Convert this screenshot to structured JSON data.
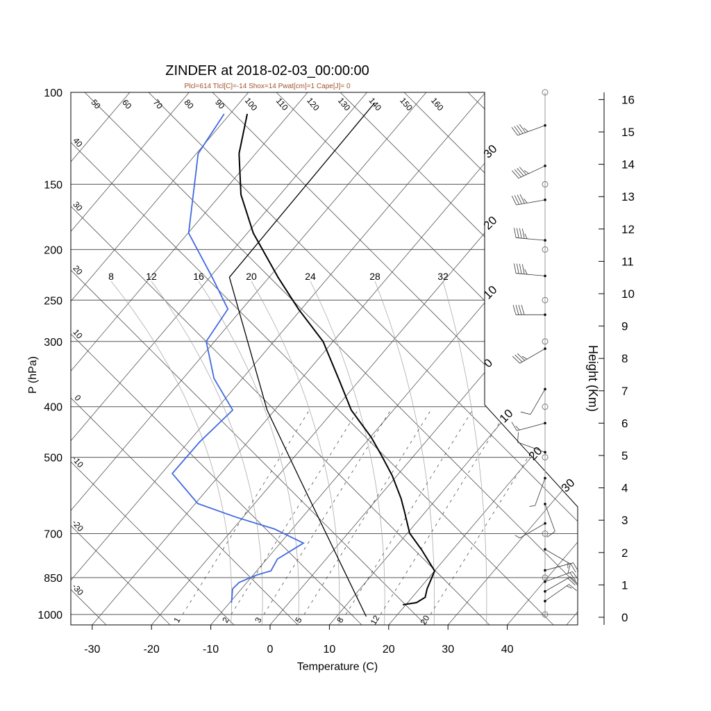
{
  "title": "ZINDER at 2018-02-03_00:00:00",
  "subtitle": "Plcl=614 Tlcl[C]=-14 Shox=14 Pwat[cm]=1 Cape[J]= 0",
  "colors": {
    "temperature": "#000000",
    "dewpoint": "#4169e1",
    "subtitle": "#a0522d",
    "grid": "#555555",
    "moist": "#aaaaaa"
  },
  "chart_data": {
    "type": "line",
    "title": "ZINDER at 2018-02-03_00:00:00",
    "xlabel": "Temperature (C)",
    "ylabel": "P (hPa)",
    "y2label": "Height (Km)",
    "pressure_levels": [
      100,
      150,
      200,
      250,
      300,
      400,
      500,
      700,
      850,
      1000
    ],
    "temperature_ticks": [
      -30,
      -20,
      -10,
      0,
      10,
      20,
      30,
      40
    ],
    "height_ticks": [
      0,
      1,
      2,
      3,
      4,
      5,
      6,
      7,
      8,
      9,
      10,
      11,
      12,
      13,
      14,
      15,
      16
    ],
    "isotherm_labels_upper": [
      "30",
      "20",
      "10",
      "0"
    ],
    "isotherm_labels_lower": [
      "10",
      "20",
      "30"
    ],
    "adiabat_labels_top": [
      "50",
      "60",
      "70",
      "80",
      "90",
      "100",
      "110",
      "120",
      "130",
      "140",
      "150",
      "160"
    ],
    "adiabat_labels_left": [
      "40",
      "30",
      "20",
      "10",
      "0",
      "-10",
      "-20",
      "-30"
    ],
    "moist_adiabat_labels": [
      "8",
      "12",
      "16",
      "20",
      "24",
      "28",
      "32"
    ],
    "mixing_ratio_labels": [
      "1",
      "2",
      "3",
      "5",
      "8",
      "12",
      "20"
    ],
    "temperature": [
      {
        "p": 958,
        "t": 19.5
      },
      {
        "p": 949,
        "t": 21.5
      },
      {
        "p": 927,
        "t": 22.2
      },
      {
        "p": 893,
        "t": 21.3
      },
      {
        "p": 825,
        "t": 20.0
      },
      {
        "p": 752,
        "t": 14.8
      },
      {
        "p": 699,
        "t": 10.4
      },
      {
        "p": 638,
        "t": 6.6
      },
      {
        "p": 600,
        "t": 4.0
      },
      {
        "p": 542,
        "t": -0.8
      },
      {
        "p": 494,
        "t": -5.7
      },
      {
        "p": 458,
        "t": -9.8
      },
      {
        "p": 406,
        "t": -17.1
      },
      {
        "p": 359,
        "t": -23.0
      },
      {
        "p": 300,
        "t": -31.7
      },
      {
        "p": 260,
        "t": -40.5
      },
      {
        "p": 226,
        "t": -48.5
      },
      {
        "p": 186,
        "t": -59.0
      },
      {
        "p": 157,
        "t": -66.6
      },
      {
        "p": 131,
        "t": -72.8
      },
      {
        "p": 110,
        "t": -77.1
      }
    ],
    "dewpoint": [
      {
        "p": 949,
        "t": -9.7
      },
      {
        "p": 893,
        "t": -11.5
      },
      {
        "p": 868,
        "t": -11.3
      },
      {
        "p": 840,
        "t": -9.4
      },
      {
        "p": 825,
        "t": -7.6
      },
      {
        "p": 783,
        "t": -8.2
      },
      {
        "p": 730,
        "t": -6.1
      },
      {
        "p": 686,
        "t": -13.0
      },
      {
        "p": 651,
        "t": -21.2
      },
      {
        "p": 613,
        "t": -29.6
      },
      {
        "p": 537,
        "t": -38.2
      },
      {
        "p": 467,
        "t": -38.1
      },
      {
        "p": 406,
        "t": -37.1
      },
      {
        "p": 353,
        "t": -44.8
      },
      {
        "p": 300,
        "t": -51.4
      },
      {
        "p": 260,
        "t": -52.4
      },
      {
        "p": 226,
        "t": -59.6
      },
      {
        "p": 186,
        "t": -69.9
      },
      {
        "p": 131,
        "t": -79.7
      },
      {
        "p": 110,
        "t": -81.0
      }
    ],
    "parcel": [
      {
        "p": 1009,
        "t": 15.0
      },
      {
        "p": 548,
        "t": -16.1
      },
      {
        "p": 406,
        "t": -31.3
      },
      {
        "p": 226,
        "t": -56.7
      },
      {
        "p": 104.7,
        "t": -57.2
      }
    ],
    "winds": [
      {
        "z": 15.2,
        "dir": 250,
        "kt": 45
      },
      {
        "z": 13.95,
        "dir": 245,
        "kt": 45
      },
      {
        "z": 12.9,
        "dir": 260,
        "kt": 45
      },
      {
        "z": 11.65,
        "dir": 275,
        "kt": 45
      },
      {
        "z": 10.55,
        "dir": 275,
        "kt": 45
      },
      {
        "z": 9.35,
        "dir": 270,
        "kt": 40
      },
      {
        "z": 8.3,
        "dir": 240,
        "kt": 35
      },
      {
        "z": 7.05,
        "dir": 210,
        "kt": 10
      },
      {
        "z": 6.0,
        "dir": 255,
        "kt": 15
      },
      {
        "z": 5.1,
        "dir": 290,
        "kt": 10
      },
      {
        "z": 4.3,
        "dir": 200,
        "kt": 5
      },
      {
        "z": 3.5,
        "dir": 160,
        "kt": 10
      },
      {
        "z": 2.9,
        "dir": 240,
        "kt": 5
      },
      {
        "z": 2.1,
        "dir": 120,
        "kt": 15
      },
      {
        "z": 1.45,
        "dir": 75,
        "kt": 20
      },
      {
        "z": 1.1,
        "dir": 70,
        "kt": 20
      },
      {
        "z": 0.8,
        "dir": 60,
        "kt": 20
      },
      {
        "z": 0.5,
        "dir": 55,
        "kt": 15
      }
    ]
  }
}
